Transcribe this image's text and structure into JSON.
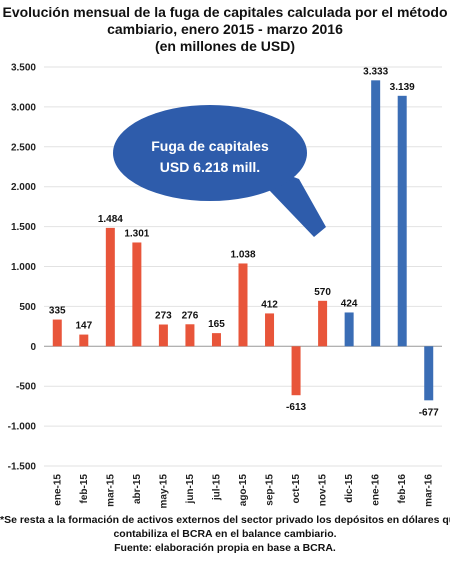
{
  "title": {
    "line1": "Evolución mensual de la fuga de capitales calculada por el método",
    "line2": "cambiario, enero 2015 - marzo 2016",
    "line3": "(en millones de USD)"
  },
  "chart_data": {
    "type": "bar",
    "categories": [
      "ene-15",
      "feb-15",
      "mar-15",
      "abr-15",
      "may-15",
      "jun-15",
      "jul-15",
      "ago-15",
      "sep-15",
      "oct-15",
      "nov-15",
      "dic-15",
      "ene-16",
      "feb-16",
      "mar-16"
    ],
    "values": [
      335,
      147,
      1484,
      1301,
      273,
      276,
      165,
      1038,
      412,
      -613,
      570,
      424,
      3333,
      3139,
      -677
    ],
    "value_labels": [
      "335",
      "147",
      "1.484",
      "1.301",
      "273",
      "276",
      "165",
      "1.038",
      "412",
      "-613",
      "570",
      "424",
      "3.333",
      "3.139",
      "-677"
    ],
    "bar_colors": [
      "#e8553a",
      "#e8553a",
      "#e8553a",
      "#e8553a",
      "#e8553a",
      "#e8553a",
      "#e8553a",
      "#e8553a",
      "#e8553a",
      "#e8553a",
      "#e8553a",
      "#3a6db5",
      "#3a6db5",
      "#3a6db5",
      "#3a6db5"
    ],
    "ylim": [
      -1500,
      3500
    ],
    "yticks": [
      3500,
      3000,
      2500,
      2000,
      1500,
      1000,
      500,
      0,
      -500,
      -1000,
      -1500
    ],
    "ytick_labels": [
      "3.500",
      "3.000",
      "2.500",
      "2.000",
      "1.500",
      "1.000",
      "500",
      "0",
      "-500",
      "-1.000",
      "-1.500"
    ],
    "grid": true,
    "annotation": {
      "line1": "Fuga de capitales",
      "line2": "USD 6.218 mill.",
      "color": "#2e5cab"
    }
  },
  "footnote": {
    "line1": "*Se resta a la formación de activos externos del sector privado los depósitos en dólares que",
    "line2": "contabiliza el BCRA en el balance cambiario.",
    "line3": "Fuente: elaboración propia en base a BCRA."
  }
}
